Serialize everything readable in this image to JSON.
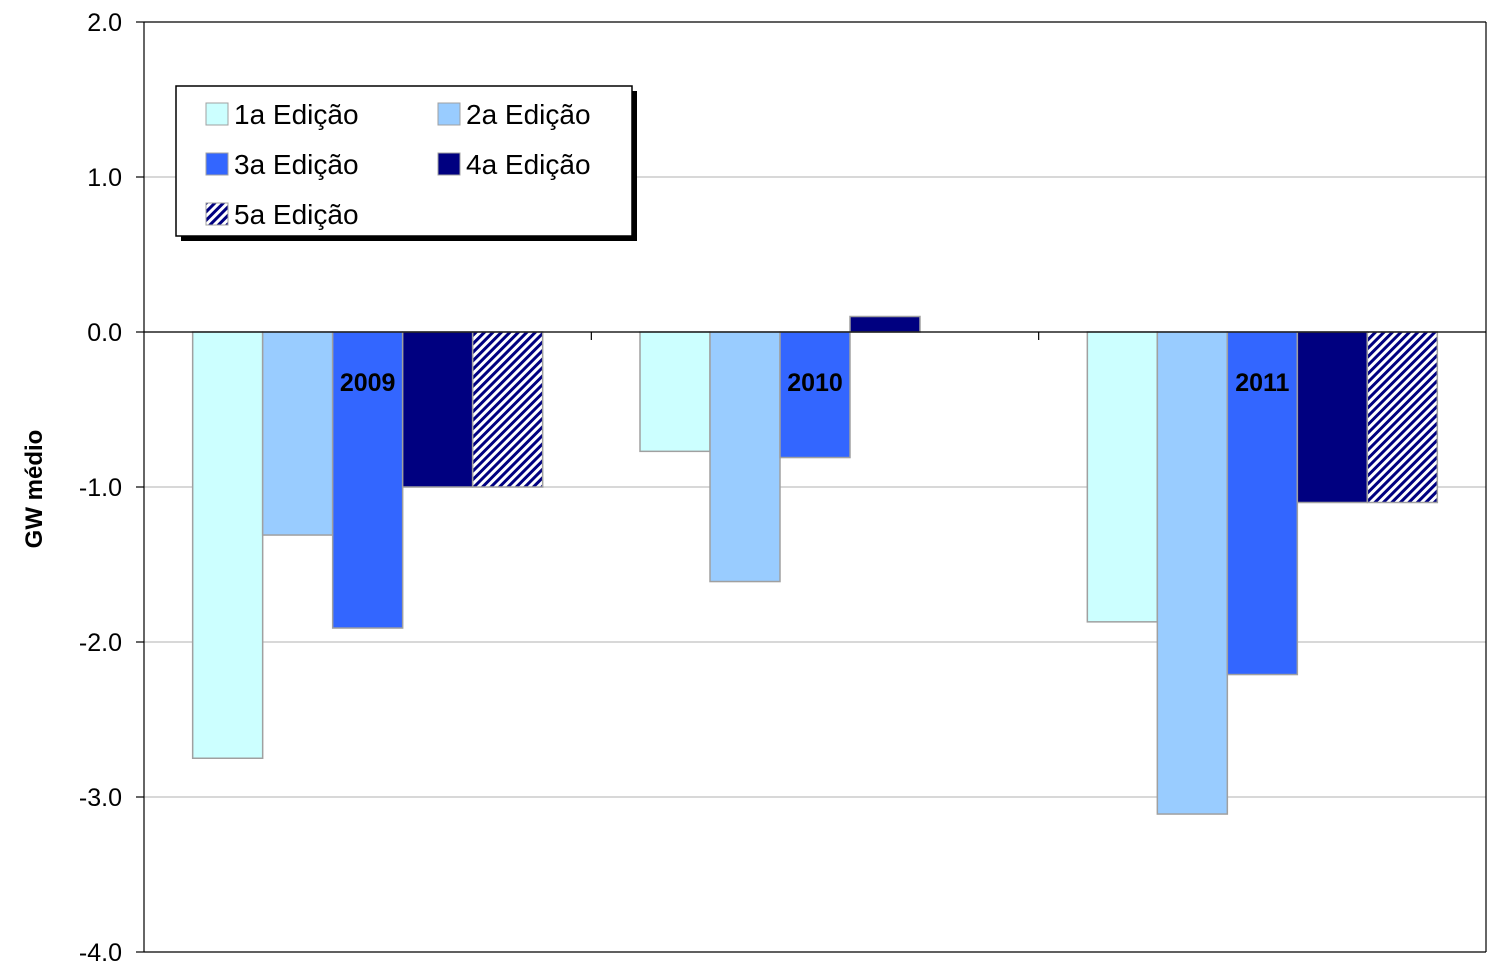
{
  "chart_data": {
    "type": "bar",
    "categories": [
      "2009",
      "2010",
      "2011"
    ],
    "series": [
      {
        "name": "1a Edição",
        "values": [
          -2.75,
          -0.77,
          -1.87
        ],
        "color": "#CCFFFF"
      },
      {
        "name": "2a Edição",
        "values": [
          -1.31,
          -1.61,
          -3.11
        ],
        "color": "#99CCFF"
      },
      {
        "name": "3a Edição",
        "values": [
          -1.91,
          -0.81,
          -2.21
        ],
        "color": "#3366FF"
      },
      {
        "name": "4a Edição",
        "values": [
          -1.0,
          0.1,
          -1.1
        ],
        "color": "#000080"
      },
      {
        "name": "5a Edição",
        "values": [
          -1.0,
          null,
          -1.1
        ],
        "color": "#000080",
        "pattern": "diagonal-hatch"
      }
    ],
    "ylabel": "GW médio",
    "xlabel": "",
    "ylim": [
      -4.0,
      2.0
    ],
    "yticks": [
      2.0,
      1.0,
      0.0,
      -1.0,
      -2.0,
      -3.0,
      -4.0
    ],
    "ytick_labels": [
      "2.0",
      "1.0",
      "0.0",
      "-1.0",
      "-2.0",
      "-3.0",
      "-4.0"
    ],
    "grid": true,
    "legend_position": "top-left",
    "bar_border_color": "#A0A0A0",
    "grid_color": "#C0C0C0"
  }
}
